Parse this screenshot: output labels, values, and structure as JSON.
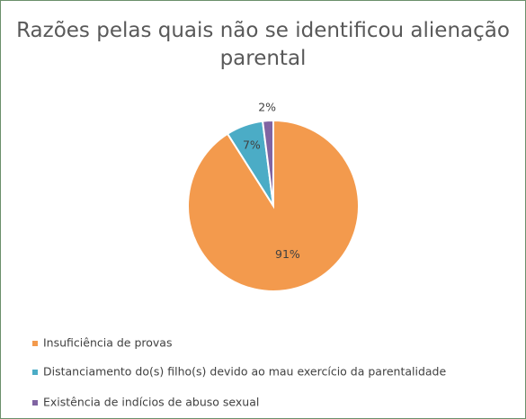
{
  "chart_data": {
    "type": "pie",
    "title": "Razões pelas quais não se identificou alienação parental",
    "categories": [
      "Insuficiência de provas",
      "Distanciamento do(s) filho(s) devido ao mau exercício da parentalidade",
      "Existência de indícios de abuso sexual"
    ],
    "values": [
      91,
      7,
      2
    ],
    "value_labels": [
      "91%",
      "7%",
      "2%"
    ],
    "colors": [
      "#f39a4d",
      "#4bacc6",
      "#8064a2"
    ],
    "legend": "bottom"
  }
}
